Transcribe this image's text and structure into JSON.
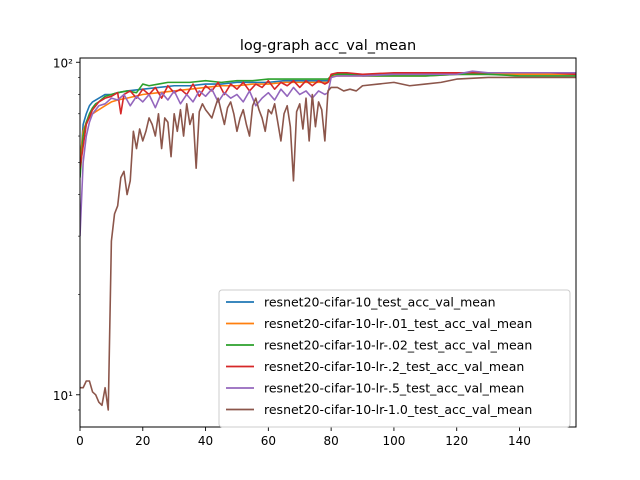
{
  "chart_data": {
    "type": "line",
    "title": "log-graph acc_val_mean",
    "xlabel": "",
    "ylabel": "",
    "xlim": [
      0,
      158
    ],
    "ylim": [
      8,
      103
    ],
    "yscale": "log",
    "grid": false,
    "legend_position": "lower-right",
    "x_ticks": [
      0,
      20,
      40,
      60,
      80,
      100,
      120,
      140
    ],
    "x_tick_labels": [
      "0",
      "20",
      "40",
      "60",
      "80",
      "100",
      "120",
      "140"
    ],
    "y_ticks": [
      10,
      100
    ],
    "y_tick_labels": [
      "10¹",
      "10²"
    ],
    "series": [
      {
        "name": "resnet20-cifar-10_test_acc_val_mean",
        "color": "#1f77b4",
        "x": [
          0,
          1,
          2,
          3,
          4,
          5,
          6,
          8,
          10,
          12,
          15,
          20,
          25,
          30,
          35,
          40,
          45,
          50,
          55,
          60,
          65,
          70,
          75,
          79,
          80,
          81,
          85,
          90,
          100,
          110,
          120,
          130,
          140,
          150,
          158
        ],
        "values": [
          48,
          65,
          70,
          74,
          76,
          77,
          78,
          80,
          80,
          81,
          82,
          83,
          84,
          85,
          85,
          86,
          86,
          87,
          87,
          87,
          88,
          88,
          88,
          88,
          91,
          92,
          92,
          92,
          92,
          92,
          92,
          92,
          92,
          92,
          92
        ]
      },
      {
        "name": "resnet20-cifar-10-lr-.01_test_acc_val_mean",
        "color": "#ff7f0e",
        "x": [
          0,
          1,
          2,
          3,
          4,
          5,
          6,
          8,
          10,
          12,
          15,
          20,
          25,
          30,
          35,
          40,
          45,
          50,
          55,
          60,
          65,
          70,
          75,
          79,
          80,
          81,
          85,
          90,
          100,
          110,
          120,
          130,
          140,
          150,
          158
        ],
        "values": [
          50,
          62,
          66,
          68,
          70,
          71,
          72,
          74,
          76,
          77,
          78,
          80,
          81,
          82,
          83,
          84,
          85,
          85,
          86,
          86,
          87,
          87,
          87,
          87,
          90,
          91,
          91,
          91,
          91,
          91,
          92,
          92,
          92,
          92,
          92
        ]
      },
      {
        "name": "resnet20-cifar-10-lr-.02_test_acc_val_mean",
        "color": "#2ca02c",
        "x": [
          0,
          1,
          2,
          3,
          4,
          5,
          6,
          8,
          10,
          12,
          15,
          18,
          20,
          22,
          25,
          28,
          30,
          35,
          40,
          45,
          50,
          55,
          60,
          65,
          70,
          75,
          79,
          80,
          81,
          85,
          90,
          100,
          110,
          120,
          130,
          140,
          150,
          158
        ],
        "values": [
          45,
          60,
          66,
          70,
          73,
          75,
          76,
          79,
          80,
          81,
          82,
          81,
          86,
          85,
          86,
          87,
          87,
          87,
          88,
          87,
          88,
          88,
          89,
          89,
          89,
          89,
          89,
          91,
          92,
          92,
          91,
          91,
          91,
          92,
          92,
          91,
          91,
          91
        ]
      },
      {
        "name": "resnet20-cifar-10-lr-.2_test_acc_val_mean",
        "color": "#d62728",
        "x": [
          0,
          2,
          4,
          6,
          8,
          10,
          12,
          13,
          14,
          16,
          18,
          20,
          22,
          24,
          26,
          28,
          30,
          32,
          34,
          36,
          38,
          40,
          42,
          44,
          46,
          48,
          50,
          52,
          54,
          56,
          58,
          60,
          62,
          64,
          66,
          68,
          70,
          72,
          74,
          76,
          78,
          79,
          80,
          82,
          85,
          90,
          100,
          110,
          120,
          130,
          140,
          150,
          158
        ],
        "values": [
          48,
          65,
          72,
          76,
          78,
          79,
          81,
          70,
          80,
          82,
          78,
          83,
          80,
          84,
          78,
          85,
          81,
          83,
          80,
          86,
          79,
          85,
          82,
          87,
          80,
          86,
          83,
          87,
          82,
          86,
          84,
          88,
          83,
          87,
          85,
          88,
          84,
          88,
          85,
          88,
          86,
          87,
          92,
          93,
          93,
          92,
          93,
          93,
          93,
          93,
          93,
          93,
          92
        ]
      },
      {
        "name": "resnet20-cifar-10-lr-.5_test_acc_val_mean",
        "color": "#9467bd",
        "x": [
          0,
          1,
          2,
          3,
          4,
          5,
          6,
          8,
          10,
          12,
          14,
          16,
          18,
          20,
          22,
          24,
          26,
          28,
          30,
          32,
          34,
          36,
          38,
          40,
          42,
          44,
          46,
          48,
          50,
          52,
          54,
          56,
          58,
          60,
          62,
          64,
          66,
          68,
          70,
          72,
          74,
          76,
          78,
          79,
          80,
          82,
          85,
          90,
          100,
          110,
          120,
          125,
          130,
          140,
          150,
          158
        ],
        "values": [
          30,
          50,
          60,
          66,
          70,
          72,
          74,
          75,
          78,
          77,
          80,
          74,
          79,
          76,
          80,
          73,
          81,
          77,
          82,
          75,
          80,
          76,
          82,
          79,
          83,
          76,
          81,
          78,
          80,
          76,
          82,
          74,
          78,
          81,
          77,
          83,
          79,
          84,
          80,
          82,
          78,
          82,
          80,
          81,
          90,
          91,
          91,
          91,
          92,
          92,
          92,
          94,
          93,
          93,
          93,
          93
        ]
      },
      {
        "name": "resnet20-cifar-10-lr-1.0_test_acc_val_mean",
        "color": "#8c564b",
        "x": [
          0,
          1,
          2,
          3,
          4,
          5,
          6,
          7,
          8,
          9,
          10,
          11,
          12,
          13,
          14,
          15,
          16,
          17,
          18,
          19,
          20,
          21,
          22,
          23,
          24,
          25,
          26,
          27,
          28,
          29,
          30,
          31,
          32,
          33,
          34,
          35,
          36,
          37,
          38,
          39,
          40,
          41,
          42,
          43,
          44,
          45,
          46,
          47,
          48,
          49,
          50,
          51,
          52,
          53,
          54,
          55,
          56,
          57,
          58,
          59,
          60,
          61,
          62,
          63,
          64,
          65,
          66,
          67,
          68,
          69,
          70,
          71,
          72,
          73,
          74,
          75,
          76,
          77,
          78,
          79,
          80,
          82,
          84,
          86,
          88,
          90,
          95,
          100,
          105,
          110,
          115,
          120,
          130,
          140,
          150,
          158
        ],
        "values": [
          10.5,
          10.5,
          11,
          11,
          10.2,
          10,
          9.5,
          9.3,
          10.5,
          9,
          29,
          35,
          37,
          45,
          47,
          40,
          44,
          62,
          55,
          63,
          58,
          62,
          68,
          65,
          60,
          70,
          55,
          68,
          66,
          52,
          70,
          62,
          72,
          60,
          75,
          65,
          70,
          48,
          71,
          75,
          72,
          70,
          68,
          73,
          78,
          71,
          65,
          73,
          76,
          70,
          62,
          68,
          72,
          65,
          60,
          74,
          78,
          72,
          68,
          62,
          72,
          70,
          75,
          66,
          58,
          70,
          74,
          64,
          44,
          71,
          75,
          63,
          78,
          58,
          80,
          64,
          76,
          72,
          58,
          82,
          84,
          84,
          82,
          83,
          82,
          85,
          86,
          87,
          85,
          86,
          87,
          89,
          90,
          90,
          90,
          90
        ]
      }
    ]
  }
}
